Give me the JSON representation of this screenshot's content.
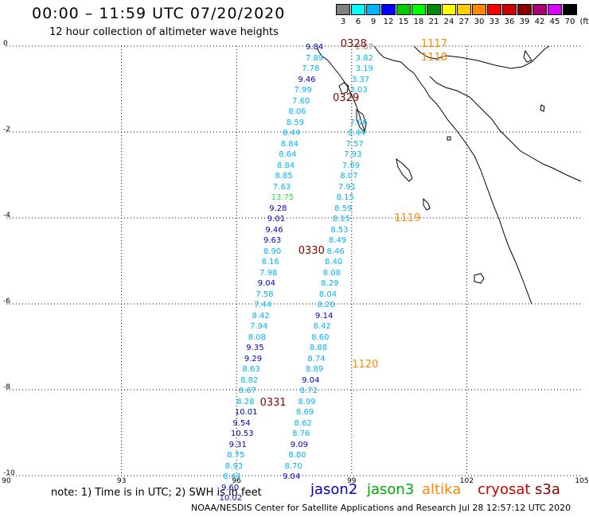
{
  "header": {
    "title": "00:00 – 11:59 UTC 07/20/2020",
    "subtitle": "12 hour collection of altimeter wave heights"
  },
  "colorbar": {
    "unit": "(ft)",
    "bins": [
      {
        "label": "3",
        "color": "#808080"
      },
      {
        "label": "6",
        "color": "#00ffff"
      },
      {
        "label": "9",
        "color": "#00b4ff"
      },
      {
        "label": "12",
        "color": "#0000ff"
      },
      {
        "label": "15",
        "color": "#00cc00"
      },
      {
        "label": "18",
        "color": "#00ff00"
      },
      {
        "label": "21",
        "color": "#008800"
      },
      {
        "label": "24",
        "color": "#ffff00"
      },
      {
        "label": "27",
        "color": "#ffcc00"
      },
      {
        "label": "30",
        "color": "#ff8800"
      },
      {
        "label": "33",
        "color": "#ff0000"
      },
      {
        "label": "36",
        "color": "#cc0000"
      },
      {
        "label": "39",
        "color": "#880000"
      },
      {
        "label": "42",
        "color": "#aa0077"
      },
      {
        "label": "45",
        "color": "#dd00ff"
      },
      {
        "label": "70",
        "color": "#000000"
      }
    ]
  },
  "axes": {
    "lat_labels": [
      "0",
      "-2",
      "-4",
      "-6",
      "-8",
      "-10"
    ],
    "lon_labels": [
      "90",
      "93",
      "96",
      "99",
      "102",
      "105"
    ]
  },
  "colors": {
    "jason2": "#0000cc",
    "jason3": "#00aa00",
    "altika": "#ff8800",
    "cryosat": "#cc0000",
    "s3a": "#880000",
    "sky": "#00b4ff",
    "gray": "#888888",
    "green": "#33dd33",
    "time_dark": "#880000",
    "time_orange": "#ff8800"
  },
  "footer": {
    "note": "note:  1) Time is in UTC;  2) SWH is in feet",
    "missions": [
      {
        "name": "jason2",
        "color": "#0000cc"
      },
      {
        "name": "jason3",
        "color": "#00aa00"
      },
      {
        "name": "altika",
        "color": "#ff8800"
      },
      {
        "name": "cryosat",
        "color": "#cc0000"
      },
      {
        "name": "s3a",
        "color": "#880000"
      }
    ],
    "credit": "NOAA/NESDIS Center for Satellite Applications and Research    Jul 28 12:57:12 UTC 2020"
  },
  "time_labels": [
    {
      "text": "0328",
      "lon": 99.0,
      "lat": 0.05,
      "color": "time_dark"
    },
    {
      "text": "1117",
      "lon": 101.1,
      "lat": 0.05,
      "color": "time_orange"
    },
    {
      "text": "1118",
      "lon": 101.1,
      "lat": -0.25,
      "color": "time_orange"
    },
    {
      "text": "0329",
      "lon": 98.8,
      "lat": -1.2,
      "color": "time_dark"
    },
    {
      "text": "1119",
      "lon": 100.4,
      "lat": -4.0,
      "color": "time_orange"
    },
    {
      "text": "0330",
      "lon": 97.9,
      "lat": -4.75,
      "color": "time_dark"
    },
    {
      "text": "1120",
      "lon": 99.3,
      "lat": -7.4,
      "color": "time_orange"
    },
    {
      "text": "0331",
      "lon": 96.9,
      "lat": -8.3,
      "color": "time_dark"
    }
  ],
  "tracks": [
    {
      "name": "descending-pass-a",
      "points": [
        {
          "v": "9.84",
          "lon": 98.05,
          "lat": 0.0,
          "c": "jason2"
        },
        {
          "v": "7.89",
          "lon": 98.05,
          "lat": -0.25,
          "c": "sky"
        },
        {
          "v": "7.78",
          "lon": 97.95,
          "lat": -0.5,
          "c": "sky"
        },
        {
          "v": "9.46",
          "lon": 97.85,
          "lat": -0.75,
          "c": "jason2"
        },
        {
          "v": "7.99",
          "lon": 97.75,
          "lat": -1.0,
          "c": "sky"
        },
        {
          "v": "7.60",
          "lon": 97.7,
          "lat": -1.25,
          "c": "sky"
        },
        {
          "v": "8.06",
          "lon": 97.6,
          "lat": -1.5,
          "c": "sky"
        },
        {
          "v": "8.59",
          "lon": 97.55,
          "lat": -1.75,
          "c": "sky"
        },
        {
          "v": "8.44",
          "lon": 97.45,
          "lat": -2.0,
          "c": "sky"
        },
        {
          "v": "8.84",
          "lon": 97.4,
          "lat": -2.25,
          "c": "sky"
        },
        {
          "v": "8.64",
          "lon": 97.35,
          "lat": -2.5,
          "c": "sky"
        },
        {
          "v": "8.84",
          "lon": 97.3,
          "lat": -2.75,
          "c": "sky"
        },
        {
          "v": "8.85",
          "lon": 97.25,
          "lat": -3.0,
          "c": "sky"
        },
        {
          "v": "7.63",
          "lon": 97.2,
          "lat": -3.25,
          "c": "sky"
        },
        {
          "v": "13.75",
          "lon": 97.15,
          "lat": -3.5,
          "c": "green"
        },
        {
          "v": "9.28",
          "lon": 97.1,
          "lat": -3.75,
          "c": "jason2"
        },
        {
          "v": "9.01",
          "lon": 97.05,
          "lat": -4.0,
          "c": "jason2"
        },
        {
          "v": "9.46",
          "lon": 97.0,
          "lat": -4.25,
          "c": "jason2"
        },
        {
          "v": "9.63",
          "lon": 96.95,
          "lat": -4.5,
          "c": "jason2"
        },
        {
          "v": "8.90",
          "lon": 96.95,
          "lat": -4.75,
          "c": "sky"
        },
        {
          "v": "8.16",
          "lon": 96.9,
          "lat": -5.0,
          "c": "sky"
        },
        {
          "v": "7.98",
          "lon": 96.85,
          "lat": -5.25,
          "c": "sky"
        },
        {
          "v": "9.04",
          "lon": 96.8,
          "lat": -5.5,
          "c": "jason2"
        },
        {
          "v": "7.58",
          "lon": 96.75,
          "lat": -5.75,
          "c": "sky"
        },
        {
          "v": "7.44",
          "lon": 96.7,
          "lat": -6.0,
          "c": "sky"
        },
        {
          "v": "8.42",
          "lon": 96.65,
          "lat": -6.25,
          "c": "sky"
        },
        {
          "v": "7.94",
          "lon": 96.6,
          "lat": -6.5,
          "c": "sky"
        },
        {
          "v": "8.08",
          "lon": 96.55,
          "lat": -6.75,
          "c": "sky"
        },
        {
          "v": "9.35",
          "lon": 96.5,
          "lat": -7.0,
          "c": "jason2"
        },
        {
          "v": "9.29",
          "lon": 96.45,
          "lat": -7.25,
          "c": "jason2"
        },
        {
          "v": "8.63",
          "lon": 96.4,
          "lat": -7.5,
          "c": "sky"
        },
        {
          "v": "8.82",
          "lon": 96.35,
          "lat": -7.75,
          "c": "sky"
        },
        {
          "v": "8.67",
          "lon": 96.3,
          "lat": -8.0,
          "c": "sky"
        },
        {
          "v": "8.28",
          "lon": 96.25,
          "lat": -8.25,
          "c": "sky"
        },
        {
          "v": "10.01",
          "lon": 96.2,
          "lat": -8.5,
          "c": "jason2"
        },
        {
          "v": "9.54",
          "lon": 96.15,
          "lat": -8.75,
          "c": "jason2"
        },
        {
          "v": "10.53",
          "lon": 96.1,
          "lat": -9.0,
          "c": "jason2"
        },
        {
          "v": "9.31",
          "lon": 96.05,
          "lat": -9.25,
          "c": "jason2"
        },
        {
          "v": "8.75",
          "lon": 96.0,
          "lat": -9.5,
          "c": "sky"
        },
        {
          "v": "8.93",
          "lon": 95.95,
          "lat": -9.75,
          "c": "sky"
        },
        {
          "v": "8.44",
          "lon": 95.9,
          "lat": -10.0,
          "c": "sky"
        },
        {
          "v": "9.60",
          "lon": 95.85,
          "lat": -10.25,
          "c": "jason2"
        },
        {
          "v": "10.02",
          "lon": 95.8,
          "lat": -10.5,
          "c": "jason2"
        }
      ]
    },
    {
      "name": "ascending-pass-b",
      "points": [
        {
          "v": "2.87",
          "lon": 99.35,
          "lat": 0.0,
          "c": "gray"
        },
        {
          "v": "3.82",
          "lon": 99.35,
          "lat": -0.25,
          "c": "sky"
        },
        {
          "v": "3.19",
          "lon": 99.35,
          "lat": -0.5,
          "c": "sky"
        },
        {
          "v": "3.37",
          "lon": 99.25,
          "lat": -0.75,
          "c": "sky"
        },
        {
          "v": "3.03",
          "lon": 99.2,
          "lat": -1.0,
          "c": "sky"
        },
        {
          "v": "7.96",
          "lon": 99.2,
          "lat": -1.75,
          "c": "sky"
        },
        {
          "v": "8.44",
          "lon": 99.15,
          "lat": -2.0,
          "c": "sky"
        },
        {
          "v": "7.57",
          "lon": 99.1,
          "lat": -2.25,
          "c": "sky"
        },
        {
          "v": "7.93",
          "lon": 99.05,
          "lat": -2.5,
          "c": "sky"
        },
        {
          "v": "7.69",
          "lon": 99.0,
          "lat": -2.75,
          "c": "sky"
        },
        {
          "v": "8.07",
          "lon": 98.95,
          "lat": -3.0,
          "c": "sky"
        },
        {
          "v": "7.91",
          "lon": 98.9,
          "lat": -3.25,
          "c": "sky"
        },
        {
          "v": "8.15",
          "lon": 98.85,
          "lat": -3.5,
          "c": "sky"
        },
        {
          "v": "8.59",
          "lon": 98.8,
          "lat": -3.75,
          "c": "sky"
        },
        {
          "v": "8.15",
          "lon": 98.75,
          "lat": -4.0,
          "c": "sky"
        },
        {
          "v": "8.53",
          "lon": 98.7,
          "lat": -4.25,
          "c": "sky"
        },
        {
          "v": "8.49",
          "lon": 98.65,
          "lat": -4.5,
          "c": "sky"
        },
        {
          "v": "8.46",
          "lon": 98.6,
          "lat": -4.75,
          "c": "sky"
        },
        {
          "v": "8.40",
          "lon": 98.55,
          "lat": -5.0,
          "c": "sky"
        },
        {
          "v": "8.08",
          "lon": 98.5,
          "lat": -5.25,
          "c": "sky"
        },
        {
          "v": "8.29",
          "lon": 98.45,
          "lat": -5.5,
          "c": "sky"
        },
        {
          "v": "8.04",
          "lon": 98.4,
          "lat": -5.75,
          "c": "sky"
        },
        {
          "v": "8.20",
          "lon": 98.35,
          "lat": -6.0,
          "c": "sky"
        },
        {
          "v": "9.14",
          "lon": 98.3,
          "lat": -6.25,
          "c": "jason2"
        },
        {
          "v": "8.42",
          "lon": 98.25,
          "lat": -6.5,
          "c": "sky"
        },
        {
          "v": "8.60",
          "lon": 98.2,
          "lat": -6.75,
          "c": "sky"
        },
        {
          "v": "8.88",
          "lon": 98.15,
          "lat": -7.0,
          "c": "sky"
        },
        {
          "v": "8.74",
          "lon": 98.1,
          "lat": -7.25,
          "c": "sky"
        },
        {
          "v": "8.89",
          "lon": 98.05,
          "lat": -7.5,
          "c": "sky"
        },
        {
          "v": "9.04",
          "lon": 97.95,
          "lat": -7.75,
          "c": "jason2"
        },
        {
          "v": "8.72",
          "lon": 97.9,
          "lat": -8.0,
          "c": "sky"
        },
        {
          "v": "8.99",
          "lon": 97.85,
          "lat": -8.25,
          "c": "sky"
        },
        {
          "v": "8.69",
          "lon": 97.8,
          "lat": -8.5,
          "c": "sky"
        },
        {
          "v": "8.62",
          "lon": 97.75,
          "lat": -8.75,
          "c": "sky"
        },
        {
          "v": "8.76",
          "lon": 97.7,
          "lat": -9.0,
          "c": "sky"
        },
        {
          "v": "9.09",
          "lon": 97.65,
          "lat": -9.25,
          "c": "jason2"
        },
        {
          "v": "8.80",
          "lon": 97.6,
          "lat": -9.5,
          "c": "sky"
        },
        {
          "v": "8.70",
          "lon": 97.5,
          "lat": -9.75,
          "c": "sky"
        },
        {
          "v": "9.04",
          "lon": 97.45,
          "lat": -10.0,
          "c": "jason2"
        }
      ]
    }
  ]
}
